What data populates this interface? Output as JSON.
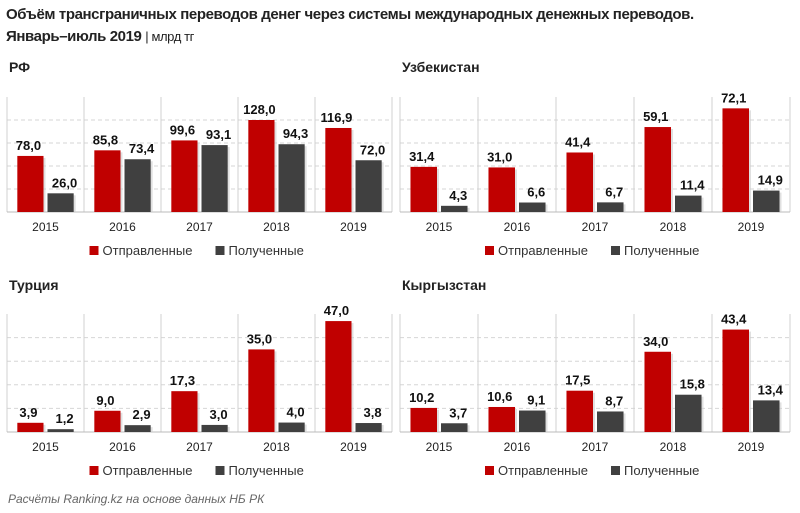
{
  "title": {
    "line1": "Объём трансграничных переводов денег через системы международных денежных переводов.",
    "line2": "Январь–июль 2019",
    "unit": "| млрд тг"
  },
  "footer": "Расчёты Ranking.kz на основе данных НБ РК",
  "colors": {
    "sent": "#C00000",
    "received": "#404040"
  },
  "chart_data": [
    {
      "type": "bar",
      "title": "РФ",
      "categories": [
        "2015",
        "2016",
        "2017",
        "2018",
        "2019"
      ],
      "ylim": [
        0,
        160
      ],
      "series": [
        {
          "name": "Отправленные",
          "values": [
            78.0,
            85.8,
            99.6,
            128.0,
            116.9
          ],
          "labels": [
            "78,0",
            "85,8",
            "99,6",
            "128,0",
            "116,9"
          ]
        },
        {
          "name": "Полученные",
          "values": [
            26.0,
            73.4,
            93.1,
            94.3,
            72.0
          ],
          "labels": [
            "26,0",
            "73,4",
            "93,1",
            "94,3",
            "72,0"
          ]
        }
      ]
    },
    {
      "type": "bar",
      "title": "Узбекистан",
      "categories": [
        "2015",
        "2016",
        "2017",
        "2018",
        "2019"
      ],
      "ylim": [
        0,
        80
      ],
      "series": [
        {
          "name": "Отправленные",
          "values": [
            31.4,
            31.0,
            41.4,
            59.1,
            72.1
          ],
          "labels": [
            "31,4",
            "31,0",
            "41,4",
            "59,1",
            "72,1"
          ]
        },
        {
          "name": "Полученные",
          "values": [
            4.3,
            6.6,
            6.7,
            11.4,
            14.9
          ],
          "labels": [
            "4,3",
            "6,6",
            "6,7",
            "11,4",
            "14,9"
          ]
        }
      ]
    },
    {
      "type": "bar",
      "title": "Турция",
      "categories": [
        "2015",
        "2016",
        "2017",
        "2018",
        "2019"
      ],
      "ylim": [
        0,
        50
      ],
      "series": [
        {
          "name": "Отправленные",
          "values": [
            3.9,
            9.0,
            17.3,
            35.0,
            47.0
          ],
          "labels": [
            "3,9",
            "9,0",
            "17,3",
            "35,0",
            "47,0"
          ]
        },
        {
          "name": "Полученные",
          "values": [
            1.2,
            2.9,
            3.0,
            4.0,
            3.8
          ],
          "labels": [
            "1,2",
            "2,9",
            "3,0",
            "4,0",
            "3,8"
          ]
        }
      ]
    },
    {
      "type": "bar",
      "title": "Кыргызстан",
      "categories": [
        "2015",
        "2016",
        "2017",
        "2018",
        "2019"
      ],
      "ylim": [
        0,
        50
      ],
      "series": [
        {
          "name": "Отправленные",
          "values": [
            10.2,
            10.6,
            17.5,
            34.0,
            43.4
          ],
          "labels": [
            "10,2",
            "10,6",
            "17,5",
            "34,0",
            "43,4"
          ]
        },
        {
          "name": "Полученные",
          "values": [
            3.7,
            9.1,
            8.7,
            15.8,
            13.4
          ],
          "labels": [
            "3,7",
            "9,1",
            "8,7",
            "15,8",
            "13,4"
          ]
        }
      ]
    }
  ]
}
